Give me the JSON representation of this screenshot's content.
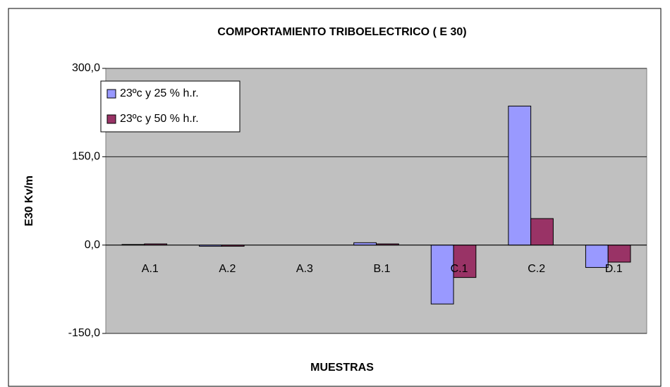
{
  "chart_data": {
    "type": "bar",
    "title": "COMPORTAMIENTO TRIBOELECTRICO ( E 30)",
    "x_label": "MUESTRAS",
    "y_label": "E30 Kv/m",
    "categories": [
      "A.1",
      "A.2",
      "A.3",
      "B.1",
      "C.1",
      "C.2",
      "D.1"
    ],
    "series": [
      {
        "name": "23ºc y 25 % h.r.",
        "color": "#9999ff",
        "values": [
          1,
          -2,
          0,
          4,
          -100,
          236,
          -38
        ]
      },
      {
        "name": "23ºc y 50 % h.r.",
        "color": "#993366",
        "values": [
          2,
          -2,
          0,
          2,
          -55,
          45,
          -29
        ]
      }
    ],
    "ylim": [
      -150,
      300
    ],
    "yticks": [
      {
        "value": -150,
        "label": "-150,0"
      },
      {
        "value": 0,
        "label": "0,0"
      },
      {
        "value": 150,
        "label": "150,0"
      },
      {
        "value": 300,
        "label": "300,0"
      }
    ],
    "grid": true,
    "legend": "upper left"
  }
}
